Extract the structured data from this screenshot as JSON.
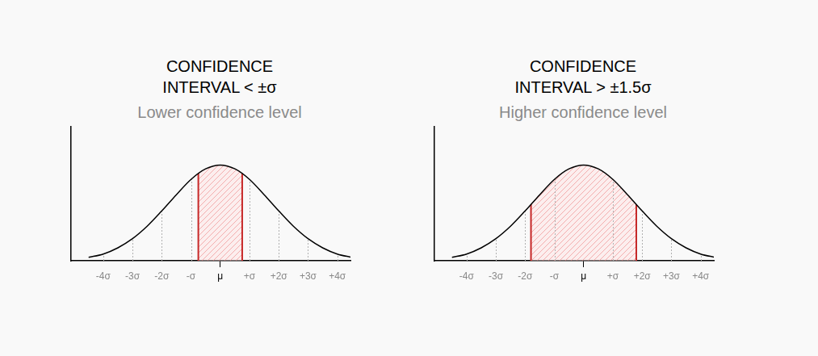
{
  "chart_data": [
    {
      "type": "line",
      "title": [
        "CONFIDENCE",
        "INTERVAL < ±σ"
      ],
      "subtitle": "Lower confidence level",
      "x": [
        -4.5,
        -4,
        -3.5,
        -3,
        -2.5,
        -2,
        -1.5,
        -1,
        -0.5,
        0,
        0.5,
        1,
        1.5,
        2,
        2.5,
        3,
        3.5,
        4,
        4.5
      ],
      "values": [
        0.035,
        0.07,
        0.135,
        0.23,
        0.36,
        0.52,
        0.69,
        0.85,
        0.96,
        1,
        0.96,
        0.85,
        0.69,
        0.52,
        0.36,
        0.23,
        0.135,
        0.07,
        0.035
      ],
      "interval": [
        -0.75,
        0.75
      ],
      "color": "#000000",
      "xlim": [
        -5.1,
        4.45
      ],
      "xticks": [
        {
          "value": -4,
          "label": "-4σ"
        },
        {
          "value": -3,
          "label": "-3σ"
        },
        {
          "value": -2,
          "label": "-2σ"
        },
        {
          "value": -1,
          "label": "-σ"
        },
        {
          "value": 0,
          "label": "μ"
        },
        {
          "value": 1,
          "label": "+σ"
        },
        {
          "value": 2,
          "label": "+2σ"
        },
        {
          "value": 3,
          "label": "+3σ"
        },
        {
          "value": 4,
          "label": "+4σ"
        }
      ],
      "ylim": [
        0,
        1.4
      ],
      "grid": true,
      "tick_labels": "x"
    },
    {
      "type": "line",
      "title": [
        "CONFIDENCE",
        "INTERVAL > ±1.5σ"
      ],
      "subtitle": "Higher confidence level",
      "x": [
        -4.5,
        -4,
        -3.5,
        -3,
        -2.5,
        -2,
        -1.5,
        -1,
        -0.5,
        0,
        0.5,
        1,
        1.5,
        2,
        2.5,
        3,
        3.5,
        4,
        4.5
      ],
      "values": [
        0.035,
        0.07,
        0.135,
        0.23,
        0.36,
        0.52,
        0.69,
        0.85,
        0.96,
        1,
        0.96,
        0.85,
        0.69,
        0.52,
        0.36,
        0.23,
        0.135,
        0.07,
        0.035
      ],
      "interval": [
        -1.8,
        1.8
      ],
      "color": "#000000",
      "xlim": [
        -5.1,
        4.45
      ],
      "xticks": [
        {
          "value": -4,
          "label": "-4σ"
        },
        {
          "value": -3,
          "label": "-3σ"
        },
        {
          "value": -2,
          "label": "-2σ"
        },
        {
          "value": -1,
          "label": "-σ"
        },
        {
          "value": 0,
          "label": "μ"
        },
        {
          "value": 1,
          "label": "+σ"
        },
        {
          "value": 2,
          "label": "+2σ"
        },
        {
          "value": 3,
          "label": "+3σ"
        },
        {
          "value": 4,
          "label": "+4σ"
        }
      ],
      "ylim": [
        0,
        1.4
      ],
      "grid": true,
      "tick_labels": "x"
    }
  ]
}
